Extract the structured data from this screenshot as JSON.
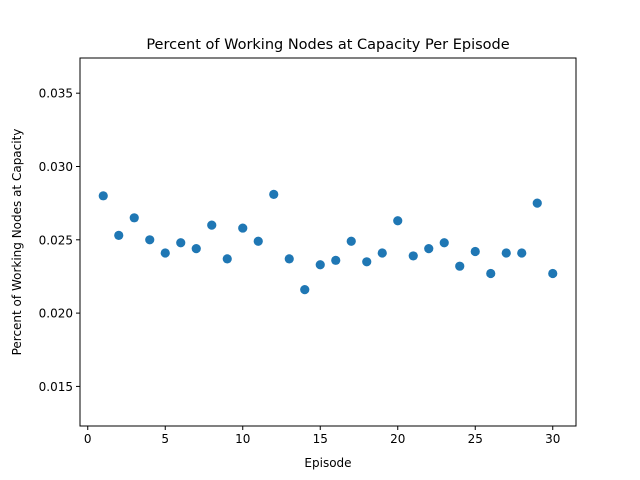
{
  "chart_data": {
    "type": "scatter",
    "title": "Percent of Working Nodes at Capacity Per Episode",
    "xlabel": "Episode",
    "ylabel": "Percent of Working Nodes at Capacity",
    "xlim": [
      -0.5,
      31.5
    ],
    "ylim": [
      0.0123,
      0.0374
    ],
    "xticks": [
      0,
      5,
      10,
      15,
      20,
      25,
      30
    ],
    "xtick_labels": [
      "0",
      "5",
      "10",
      "15",
      "20",
      "25",
      "30"
    ],
    "yticks": [
      0.015,
      0.02,
      0.025,
      0.03,
      0.035
    ],
    "ytick_labels": [
      "0.015",
      "0.020",
      "0.025",
      "0.030",
      "0.035"
    ],
    "grid": false,
    "marker_color": "#1f77b4",
    "x": [
      1,
      2,
      3,
      4,
      5,
      6,
      7,
      8,
      9,
      10,
      11,
      12,
      13,
      14,
      15,
      16,
      17,
      18,
      19,
      20,
      21,
      22,
      23,
      24,
      25,
      26,
      27,
      28,
      29,
      30
    ],
    "y": [
      0.028,
      0.0253,
      0.0265,
      0.025,
      0.0241,
      0.0248,
      0.0244,
      0.026,
      0.0237,
      0.0258,
      0.0249,
      0.0281,
      0.0237,
      0.0216,
      0.0233,
      0.0236,
      0.0249,
      0.0235,
      0.0241,
      0.0263,
      0.0239,
      0.0244,
      0.0248,
      0.0232,
      0.0242,
      0.0227,
      0.0241,
      0.0241,
      0.0275,
      0.0227
    ]
  }
}
